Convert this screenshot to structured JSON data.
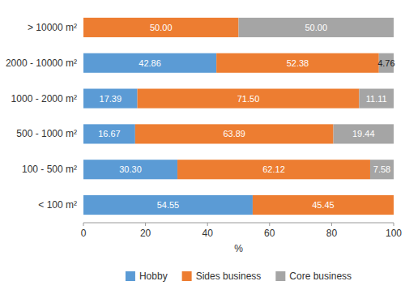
{
  "chart_data": {
    "type": "bar",
    "orientation": "horizontal",
    "stacked": true,
    "categories": [
      "> 10000 m²",
      "2000 - 10000 m²",
      "1000 - 2000 m²",
      "500 - 1000 m²",
      "100 - 500 m²",
      "< 100 m²"
    ],
    "series": [
      {
        "name": "Hobby",
        "color": "#5B9BD5",
        "values": [
          0.0,
          42.86,
          17.39,
          16.67,
          30.3,
          54.55
        ],
        "value_labels": [
          null,
          "42.86",
          "17.39",
          "16.67",
          "30.30",
          "54.55"
        ]
      },
      {
        "name": "Sides business",
        "color": "#ED7D31",
        "values": [
          50.0,
          52.38,
          71.5,
          63.89,
          62.12,
          45.45
        ],
        "value_labels": [
          "50.00",
          "52.38",
          "71.50",
          "63.89",
          "62.12",
          "45.45"
        ]
      },
      {
        "name": "Core business",
        "color": "#A5A5A5",
        "values": [
          50.0,
          4.76,
          11.11,
          19.44,
          7.58,
          0.0
        ],
        "value_labels": [
          "50.00",
          "4.76",
          "11.11",
          "19.44",
          "7.58",
          null
        ]
      }
    ],
    "x_label": "%",
    "xlim": [
      0,
      100
    ],
    "xticks": [
      0,
      20,
      40,
      60,
      80,
      100
    ],
    "data_labels": true,
    "grid": false,
    "legend": "bottom"
  }
}
